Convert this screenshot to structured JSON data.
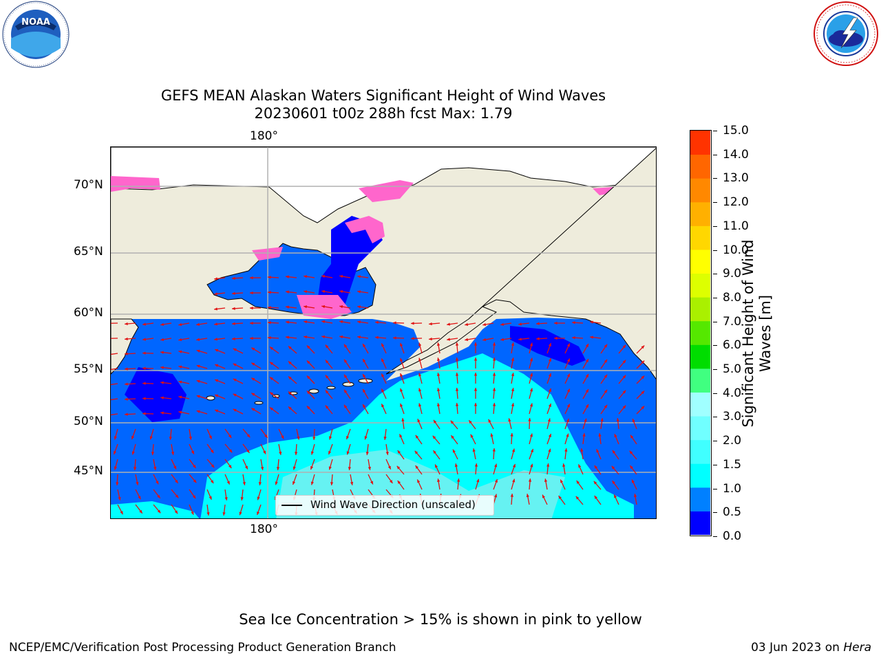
{
  "title": {
    "line1": "GEFS MEAN Alaskan Waters Significant Height of Wind Waves",
    "line2": "20230601 t00z 288h fcst   Max: 1.79"
  },
  "logos": {
    "left": {
      "name": "noaa-logo",
      "text": "NOAA",
      "ring_text": "NATIONAL OCEANIC AND ATMOSPHERIC ADMINISTRATION · U.S. DEPARTMENT OF COMMERCE"
    },
    "right": {
      "name": "nws-logo",
      "ring_text": "NATIONAL WEATHER SERVICE"
    }
  },
  "map": {
    "lon_label_top": "180°",
    "lon_label_bottom": "180°",
    "lat_labels": [
      "70°N",
      "65°N",
      "60°N",
      "55°N",
      "50°N",
      "45°N"
    ],
    "legend": "Wind Wave Direction (unscaled)",
    "colors": {
      "land": "#eeecdc",
      "ocean_low": "#0066ff",
      "ocean_mid": "#00ffff",
      "ocean_hi": "#55f5f5",
      "ice": "#ff66cc",
      "arrow": "#e01010",
      "grid": "#b0b0b0"
    }
  },
  "colorbar": {
    "title_line1": "Significant Height of Wind",
    "title_line2": "Waves [m]",
    "ticks": [
      "0.0",
      "0.5",
      "1.0",
      "1.5",
      "2.0",
      "3.0",
      "4.0",
      "5.0",
      "6.0",
      "7.0",
      "8.0",
      "9.0",
      "10.0",
      "11.0",
      "12.0",
      "13.0",
      "14.0",
      "15.0"
    ],
    "colors": [
      "#0000ff",
      "#0080ff",
      "#00ffff",
      "#40ffff",
      "#70ffff",
      "#a0ffff",
      "#40ff80",
      "#00dd00",
      "#55e800",
      "#aaf000",
      "#ddff00",
      "#ffff00",
      "#ffd700",
      "#ffb000",
      "#ff8800",
      "#ff6600",
      "#ff3300",
      "#ff0000"
    ]
  },
  "caption": "Sea Ice Concentration > 15% is shown in pink to yellow",
  "footer": {
    "left": "NCEP/EMC/Verification Post Processing Product Generation Branch",
    "right_date": "03 Jun 2023 on ",
    "right_machine": "Hera"
  }
}
